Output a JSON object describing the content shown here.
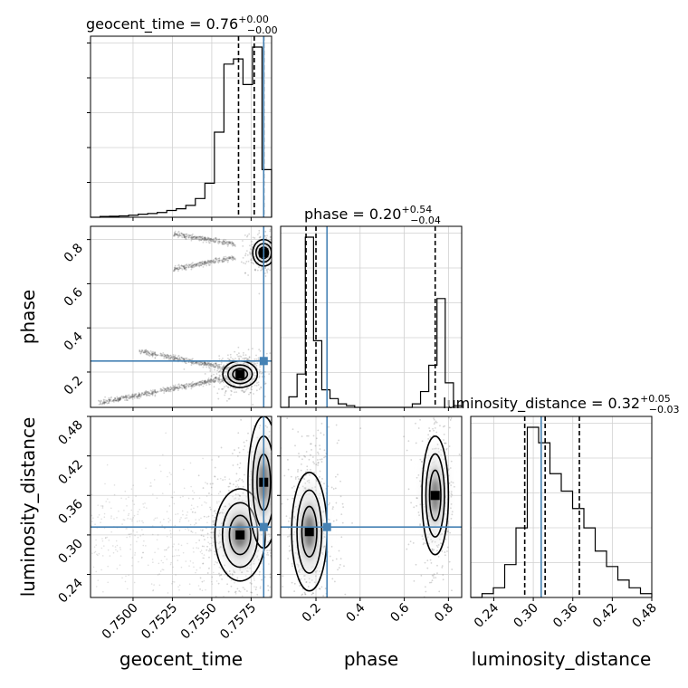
{
  "chart_data": {
    "type": "corner",
    "parameters": [
      {
        "name": "geocent_time",
        "label": "geocent_time",
        "range": [
          0.7473,
          0.7588
        ],
        "ticks": [
          0.75,
          0.7525,
          0.755,
          0.7575
        ],
        "tick_labels": [
          "0.7500",
          "0.7525",
          "0.7550",
          "0.7575"
        ],
        "truth": 0.7583,
        "quantiles": [
          0.7567,
          0.7577,
          0.7583
        ],
        "summary": {
          "prefix": "geocent_time = 0.76",
          "sup": "+0.00",
          "sub": "−0.00"
        },
        "hist_edges": [
          0.7473,
          0.7588
        ],
        "hist": [
          0,
          0.005,
          0.006,
          0.008,
          0.012,
          0.018,
          0.022,
          0.028,
          0.04,
          0.05,
          0.07,
          0.11,
          0.2,
          0.5,
          0.9,
          0.93,
          0.78,
          1.0,
          0.28
        ]
      },
      {
        "name": "phase",
        "label": "phase",
        "range": [
          0.04,
          0.86
        ],
        "ticks": [
          0.2,
          0.4,
          0.6,
          0.8
        ],
        "tick_labels": [
          "0.2",
          "0.4",
          "0.6",
          "0.8"
        ],
        "truth": 0.25,
        "quantiles": [
          0.155,
          0.2,
          0.74
        ],
        "summary": {
          "prefix": "phase = 0.20",
          "sup": "+0.54",
          "sub": "−0.04"
        },
        "hist": [
          0.0,
          0.06,
          0.19,
          0.97,
          0.38,
          0.1,
          0.05,
          0.02,
          0.01,
          0.0,
          0.0,
          0.0,
          0.0,
          0.0,
          0.0,
          0.0,
          0.02,
          0.09,
          0.24,
          0.62,
          0.14,
          0.01
        ]
      },
      {
        "name": "luminosity_distance",
        "label": "luminosity_distance",
        "range": [
          0.205,
          0.48
        ],
        "ticks": [
          0.24,
          0.3,
          0.36,
          0.42,
          0.48
        ],
        "tick_labels": [
          "0.24",
          "0.30",
          "0.36",
          "0.42",
          "0.48"
        ],
        "truth": 0.312,
        "quantiles": [
          0.287,
          0.318,
          0.37
        ],
        "summary": {
          "prefix": "luminosity_distance = 0.32",
          "sup": "+0.05",
          "sub": "−0.03"
        },
        "hist": [
          0.0,
          0.02,
          0.05,
          0.17,
          0.36,
          0.88,
          0.8,
          0.64,
          0.55,
          0.46,
          0.36,
          0.24,
          0.16,
          0.09,
          0.05,
          0.02
        ]
      }
    ],
    "density_blobs": {
      "phase_vs_geocent_time": [
        {
          "x": 0.7568,
          "y": 0.19,
          "sx": 0.00055,
          "sy": 0.03,
          "w": 0.55
        },
        {
          "x": 0.7583,
          "y": 0.74,
          "sx": 0.00035,
          "sy": 0.03,
          "w": 0.3
        }
      ],
      "luminosity_distance_vs_geocent_time": [
        {
          "x": 0.7568,
          "y": 0.3,
          "sx": 0.0008,
          "sy": 0.035,
          "w": 0.5
        },
        {
          "x": 0.7583,
          "y": 0.38,
          "sx": 0.0005,
          "sy": 0.05,
          "w": 0.3
        }
      ],
      "luminosity_distance_vs_phase": [
        {
          "x": 0.17,
          "y": 0.305,
          "sx": 0.04,
          "sy": 0.045,
          "w": 0.6
        },
        {
          "x": 0.74,
          "y": 0.36,
          "sx": 0.03,
          "sy": 0.045,
          "w": 0.4
        }
      ]
    },
    "truth_color": "#4682b4",
    "contour_color": "#000000",
    "grid": true
  }
}
